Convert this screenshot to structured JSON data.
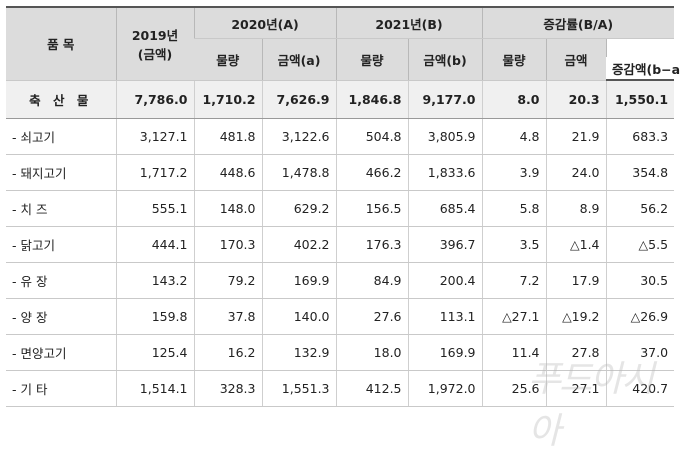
{
  "header": {
    "item": "품  목",
    "y2019_year": "2019년",
    "y2019_unit": "(금액)",
    "y2020": "2020년(A)",
    "y2021": "2021년(B)",
    "rate": "증감률(B/A)",
    "qty": "물량",
    "amt_a": "금액(a)",
    "amt_b": "금액(b)",
    "amt": "금액",
    "diff": "증감액(b−a)"
  },
  "rows": [
    {
      "name": "축 산 물",
      "v2019": "7,786.0",
      "q2020": "1,710.2",
      "a2020": "7,626.9",
      "q2021": "1,846.8",
      "a2021": "9,177.0",
      "rq": "8.0",
      "ra": "20.3",
      "diff": "1,550.1"
    },
    {
      "name": "-  쇠고기",
      "v2019": "3,127.1",
      "q2020": "481.8",
      "a2020": "3,122.6",
      "q2021": "504.8",
      "a2021": "3,805.9",
      "rq": "4.8",
      "ra": "21.9",
      "diff": "683.3"
    },
    {
      "name": "-  돼지고기",
      "v2019": "1,717.2",
      "q2020": "448.6",
      "a2020": "1,478.8",
      "q2021": "466.2",
      "a2021": "1,833.6",
      "rq": "3.9",
      "ra": "24.0",
      "diff": "354.8"
    },
    {
      "name": "-  치   즈",
      "v2019": "555.1",
      "q2020": "148.0",
      "a2020": "629.2",
      "q2021": "156.5",
      "a2021": "685.4",
      "rq": "5.8",
      "ra": "8.9",
      "diff": "56.2"
    },
    {
      "name": "-  닭고기",
      "v2019": "444.1",
      "q2020": "170.3",
      "a2020": "402.2",
      "q2021": "176.3",
      "a2021": "396.7",
      "rq": "3.5",
      "ra": "△1.4",
      "diff": "△5.5"
    },
    {
      "name": "-  유   장",
      "v2019": "143.2",
      "q2020": "79.2",
      "a2020": "169.9",
      "q2021": "84.9",
      "a2021": "200.4",
      "rq": "7.2",
      "ra": "17.9",
      "diff": "30.5"
    },
    {
      "name": "-  양   장",
      "v2019": "159.8",
      "q2020": "37.8",
      "a2020": "140.0",
      "q2021": "27.6",
      "a2021": "113.1",
      "rq": "△27.1",
      "ra": "△19.2",
      "diff": "△26.9"
    },
    {
      "name": "-  면양고기",
      "v2019": "125.4",
      "q2020": "16.2",
      "a2020": "132.9",
      "q2021": "18.0",
      "a2021": "169.9",
      "rq": "11.4",
      "ra": "27.8",
      "diff": "37.0"
    },
    {
      "name": "-  기   타",
      "v2019": "1,514.1",
      "q2020": "328.3",
      "a2020": "1,551.3",
      "q2021": "412.5",
      "a2021": "1,972.0",
      "rq": "25.6",
      "ra": "27.1",
      "diff": "420.7"
    }
  ],
  "watermark": "푸드아시아"
}
